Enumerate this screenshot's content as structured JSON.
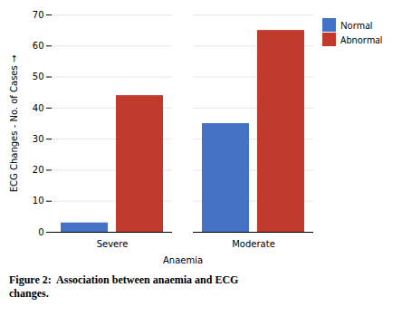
{
  "chart_data": {
    "type": "bar",
    "categories": [
      "Severe",
      "Moderate"
    ],
    "series": [
      {
        "name": "Normal",
        "color": "#4472c4",
        "values": [
          3,
          35
        ]
      },
      {
        "name": "Abnormal",
        "color": "#c0392b",
        "values": [
          44,
          65
        ]
      }
    ],
    "xlabel": "Anaemia",
    "ylabel": "ECG Changes - No. of Cases",
    "ylim": [
      0,
      70
    ],
    "yticks": [
      0,
      10,
      20,
      30,
      40,
      50,
      60,
      70
    ],
    "grid": true,
    "legend": "right",
    "caption": "Figure 2:  Association between anaemia and ECG\nchanges."
  }
}
